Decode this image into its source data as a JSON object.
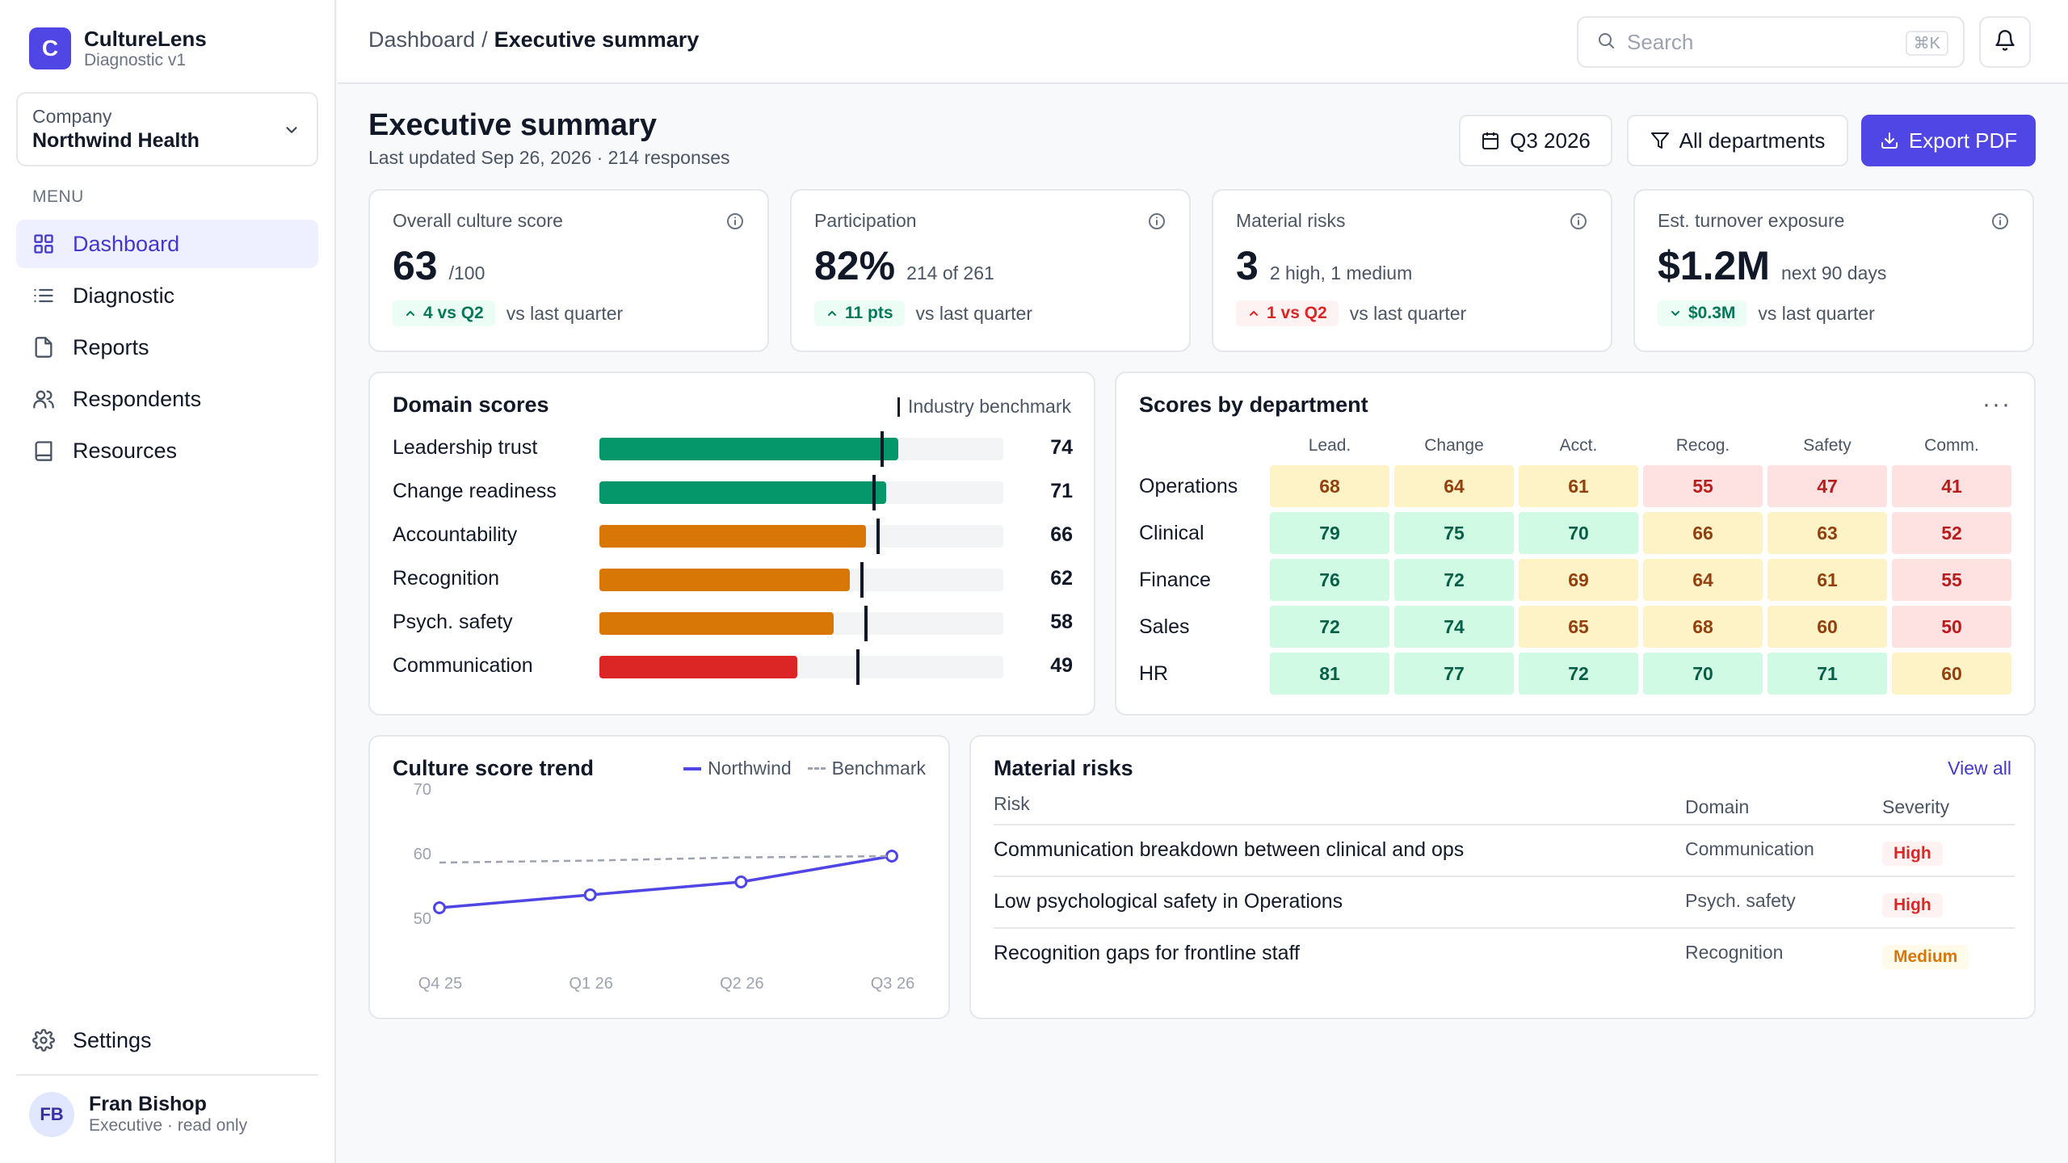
{
  "brand": {
    "logo_letter": "C",
    "name": "CultureLens",
    "sub": "Diagnostic v1"
  },
  "company": {
    "label": "Company",
    "name": "Northwind Health"
  },
  "menu_label": "MENU",
  "nav": [
    {
      "label": "Dashboard",
      "icon": "grid-icon",
      "active": true
    },
    {
      "label": "Diagnostic",
      "icon": "list-icon"
    },
    {
      "label": "Reports",
      "icon": "file-icon"
    },
    {
      "label": "Respondents",
      "icon": "users-icon"
    },
    {
      "label": "Resources",
      "icon": "book-icon"
    }
  ],
  "settings_label": "Settings",
  "user": {
    "initials": "FB",
    "name": "Fran Bishop",
    "role": "Executive · read only"
  },
  "breadcrumb": {
    "parent": "Dashboard",
    "separator": "/",
    "current": "Executive summary"
  },
  "search": {
    "placeholder": "Search",
    "shortcut": "⌘K"
  },
  "page": {
    "title": "Executive summary",
    "subtitle": "Last updated Sep 26, 2026 · 214 responses"
  },
  "actions": {
    "quarter": "Q3 2026",
    "departments": "All departments",
    "export": "Export PDF"
  },
  "kpis": [
    {
      "title": "Overall culture score",
      "value": "63",
      "unit": "/100",
      "delta": "4 vs Q2",
      "delta_dir": "up",
      "delta_tone": "good",
      "vs": "vs last quarter"
    },
    {
      "title": "Participation",
      "value": "82%",
      "unit": "214 of 261",
      "delta": "11 pts",
      "delta_dir": "up",
      "delta_tone": "good",
      "vs": "vs last quarter"
    },
    {
      "title": "Material risks",
      "value": "3",
      "unit": "2 high, 1 medium",
      "delta": "1 vs Q2",
      "delta_dir": "up",
      "delta_tone": "bad",
      "vs": "vs last quarter"
    },
    {
      "title": "Est. turnover exposure",
      "value": "$1.2M",
      "unit": "next 90 days",
      "delta": "$0.3M",
      "delta_dir": "down",
      "delta_tone": "good",
      "vs": "vs last quarter"
    }
  ],
  "domain_scores": {
    "title": "Domain scores",
    "legend": "Industry benchmark",
    "colors": {
      "high": "#059669",
      "mid": "#d97706",
      "low": "#dc2626"
    },
    "rows": [
      {
        "label": "Leadership trust",
        "value": 74,
        "benchmark": 70,
        "tone": "high"
      },
      {
        "label": "Change readiness",
        "value": 71,
        "benchmark": 68,
        "tone": "high"
      },
      {
        "label": "Accountability",
        "value": 66,
        "benchmark": 69,
        "tone": "mid"
      },
      {
        "label": "Recognition",
        "value": 62,
        "benchmark": 65,
        "tone": "mid"
      },
      {
        "label": "Psych. safety",
        "value": 58,
        "benchmark": 66,
        "tone": "mid"
      },
      {
        "label": "Communication",
        "value": 49,
        "benchmark": 64,
        "tone": "low"
      }
    ]
  },
  "department_scores": {
    "title": "Scores by department",
    "more": "···",
    "columns": [
      "Lead.",
      "Change",
      "Acct.",
      "Recog.",
      "Safety",
      "Comm."
    ],
    "rows": [
      {
        "name": "Operations",
        "values": [
          68,
          64,
          61,
          55,
          47,
          41
        ],
        "tones": [
          "y",
          "y",
          "y",
          "r",
          "r",
          "r"
        ]
      },
      {
        "name": "Clinical",
        "values": [
          79,
          75,
          70,
          66,
          63,
          52
        ],
        "tones": [
          "g",
          "g",
          "g",
          "y",
          "y",
          "r"
        ]
      },
      {
        "name": "Finance",
        "values": [
          76,
          72,
          69,
          64,
          61,
          55
        ],
        "tones": [
          "g",
          "g",
          "y",
          "y",
          "y",
          "r"
        ]
      },
      {
        "name": "Sales",
        "values": [
          72,
          74,
          65,
          68,
          60,
          50
        ],
        "tones": [
          "g",
          "g",
          "y",
          "y",
          "y",
          "r"
        ]
      },
      {
        "name": "HR",
        "values": [
          81,
          77,
          72,
          70,
          71,
          60
        ],
        "tones": [
          "g",
          "g",
          "g",
          "g",
          "g",
          "y"
        ]
      }
    ]
  },
  "trend": {
    "title": "Culture score trend",
    "legend_series": "Northwind",
    "legend_benchmark": "Benchmark"
  },
  "chart_data": {
    "type": "line",
    "title": "Culture score trend",
    "x": [
      "Q4 25",
      "Q1 26",
      "Q2 26",
      "Q3 26"
    ],
    "yticks": [
      70,
      60,
      50
    ],
    "ylim": [
      46,
      72
    ],
    "series": [
      {
        "name": "Northwind",
        "values": [
          55,
          57,
          59,
          63
        ],
        "color": "#4f46e5",
        "style": "solid"
      },
      {
        "name": "Benchmark",
        "values": [
          62,
          62.3,
          62.8,
          63
        ],
        "color": "#9ca3af",
        "style": "dashed"
      }
    ],
    "grid": false,
    "legend": "top-right"
  },
  "risks": {
    "title": "Material risks",
    "view_all": "View all",
    "headers": {
      "risk": "Risk",
      "domain": "Domain",
      "severity": "Severity"
    },
    "rows": [
      {
        "risk": "Communication breakdown between clinical and ops",
        "domain": "Communication",
        "severity": "High",
        "level": "high"
      },
      {
        "risk": "Low psychological safety in Operations",
        "domain": "Psych. safety",
        "severity": "High",
        "level": "high"
      },
      {
        "risk": "Recognition gaps for frontline staff",
        "domain": "Recognition",
        "severity": "Medium",
        "level": "med"
      }
    ]
  }
}
